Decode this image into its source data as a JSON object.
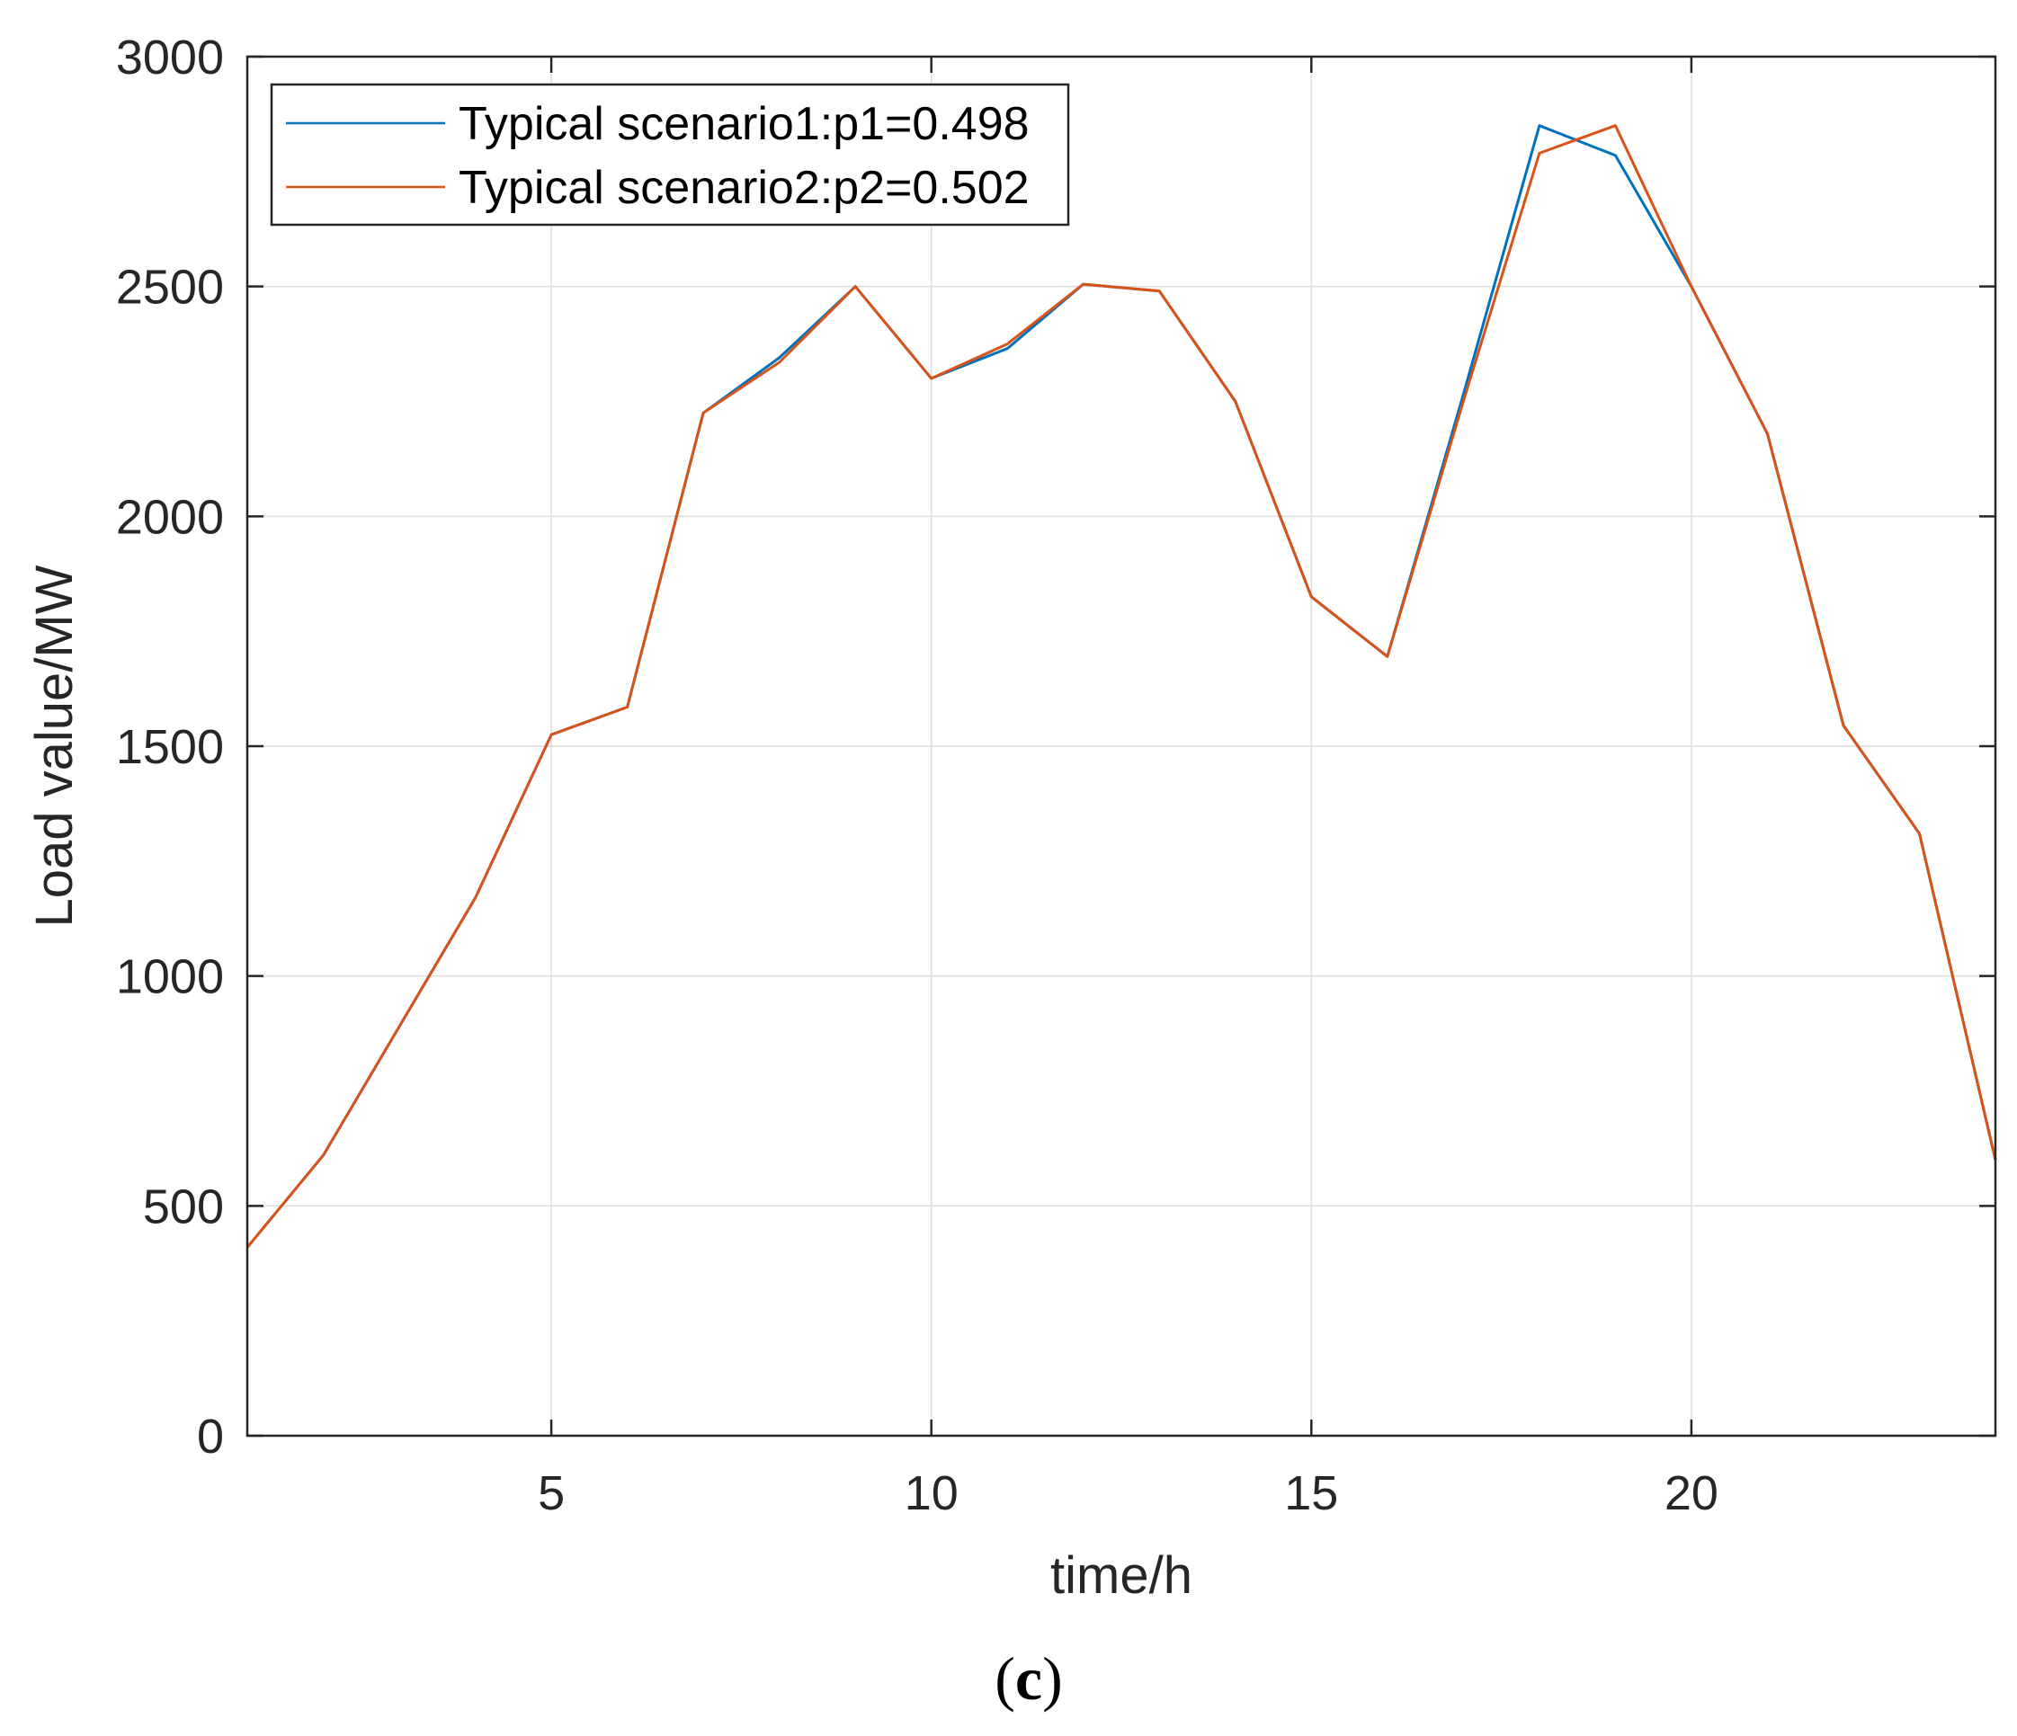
{
  "chart_data": {
    "type": "line",
    "xlabel": "time/h",
    "ylabel": "Load value/MW",
    "xlim": [
      1,
      24
    ],
    "ylim": [
      0,
      3000
    ],
    "xticks": [
      5,
      10,
      15,
      20
    ],
    "yticks": [
      0,
      500,
      1000,
      1500,
      2000,
      2500,
      3000
    ],
    "grid": true,
    "legend_position": "top-left",
    "panel_label": {
      "open": "(",
      "letter": "c",
      "close": ")"
    },
    "x": [
      1,
      2,
      3,
      4,
      5,
      6,
      7,
      8,
      9,
      10,
      11,
      12,
      13,
      14,
      15,
      16,
      17,
      18,
      19,
      20,
      21,
      22,
      23,
      24
    ],
    "series": [
      {
        "name": "Typical scenario1:p1=0.498",
        "color": "#0072BD",
        "values": [
          410,
          610,
          890,
          1170,
          1525,
          1585,
          2225,
          2345,
          2500,
          2300,
          2365,
          2505,
          2490,
          2250,
          1825,
          1695,
          2265,
          2850,
          2785,
          2500,
          2180,
          1545,
          1310,
          600
        ]
      },
      {
        "name": "Typical scenario2:p2=0.502",
        "color": "#D95319",
        "values": [
          410,
          610,
          890,
          1170,
          1525,
          1585,
          2225,
          2335,
          2500,
          2300,
          2375,
          2505,
          2490,
          2250,
          1825,
          1695,
          2250,
          2790,
          2850,
          2500,
          2180,
          1545,
          1310,
          600
        ]
      }
    ]
  }
}
